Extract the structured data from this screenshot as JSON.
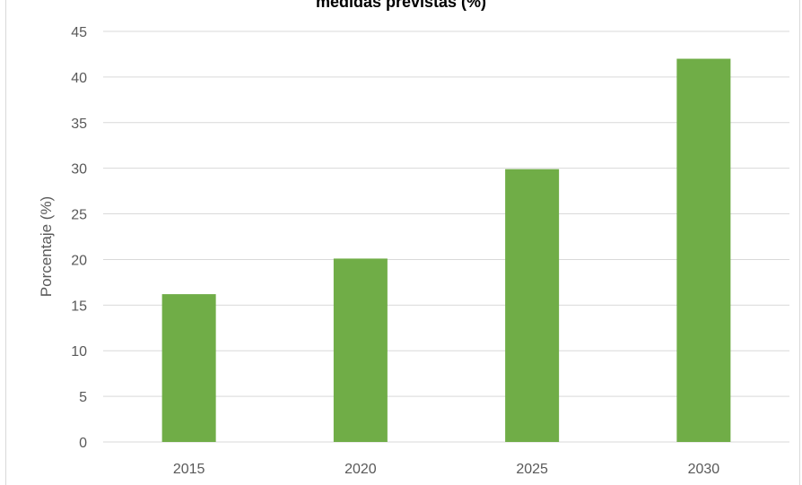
{
  "chart_data": {
    "type": "bar",
    "title": "medidas previstas (%)",
    "xlabel": "",
    "ylabel": "Porcentaje (%)",
    "categories": [
      "2015",
      "2020",
      "2025",
      "2030"
    ],
    "values": [
      16.2,
      20.1,
      29.9,
      42.0
    ],
    "ylim": [
      0,
      45
    ],
    "yticks": [
      0,
      5,
      10,
      15,
      20,
      25,
      30,
      35,
      40,
      45
    ],
    "grid": true,
    "legend": "none",
    "colors": {
      "bar": "#70ad47",
      "grid": "#d9d9d9",
      "tick_text": "#595959"
    }
  }
}
